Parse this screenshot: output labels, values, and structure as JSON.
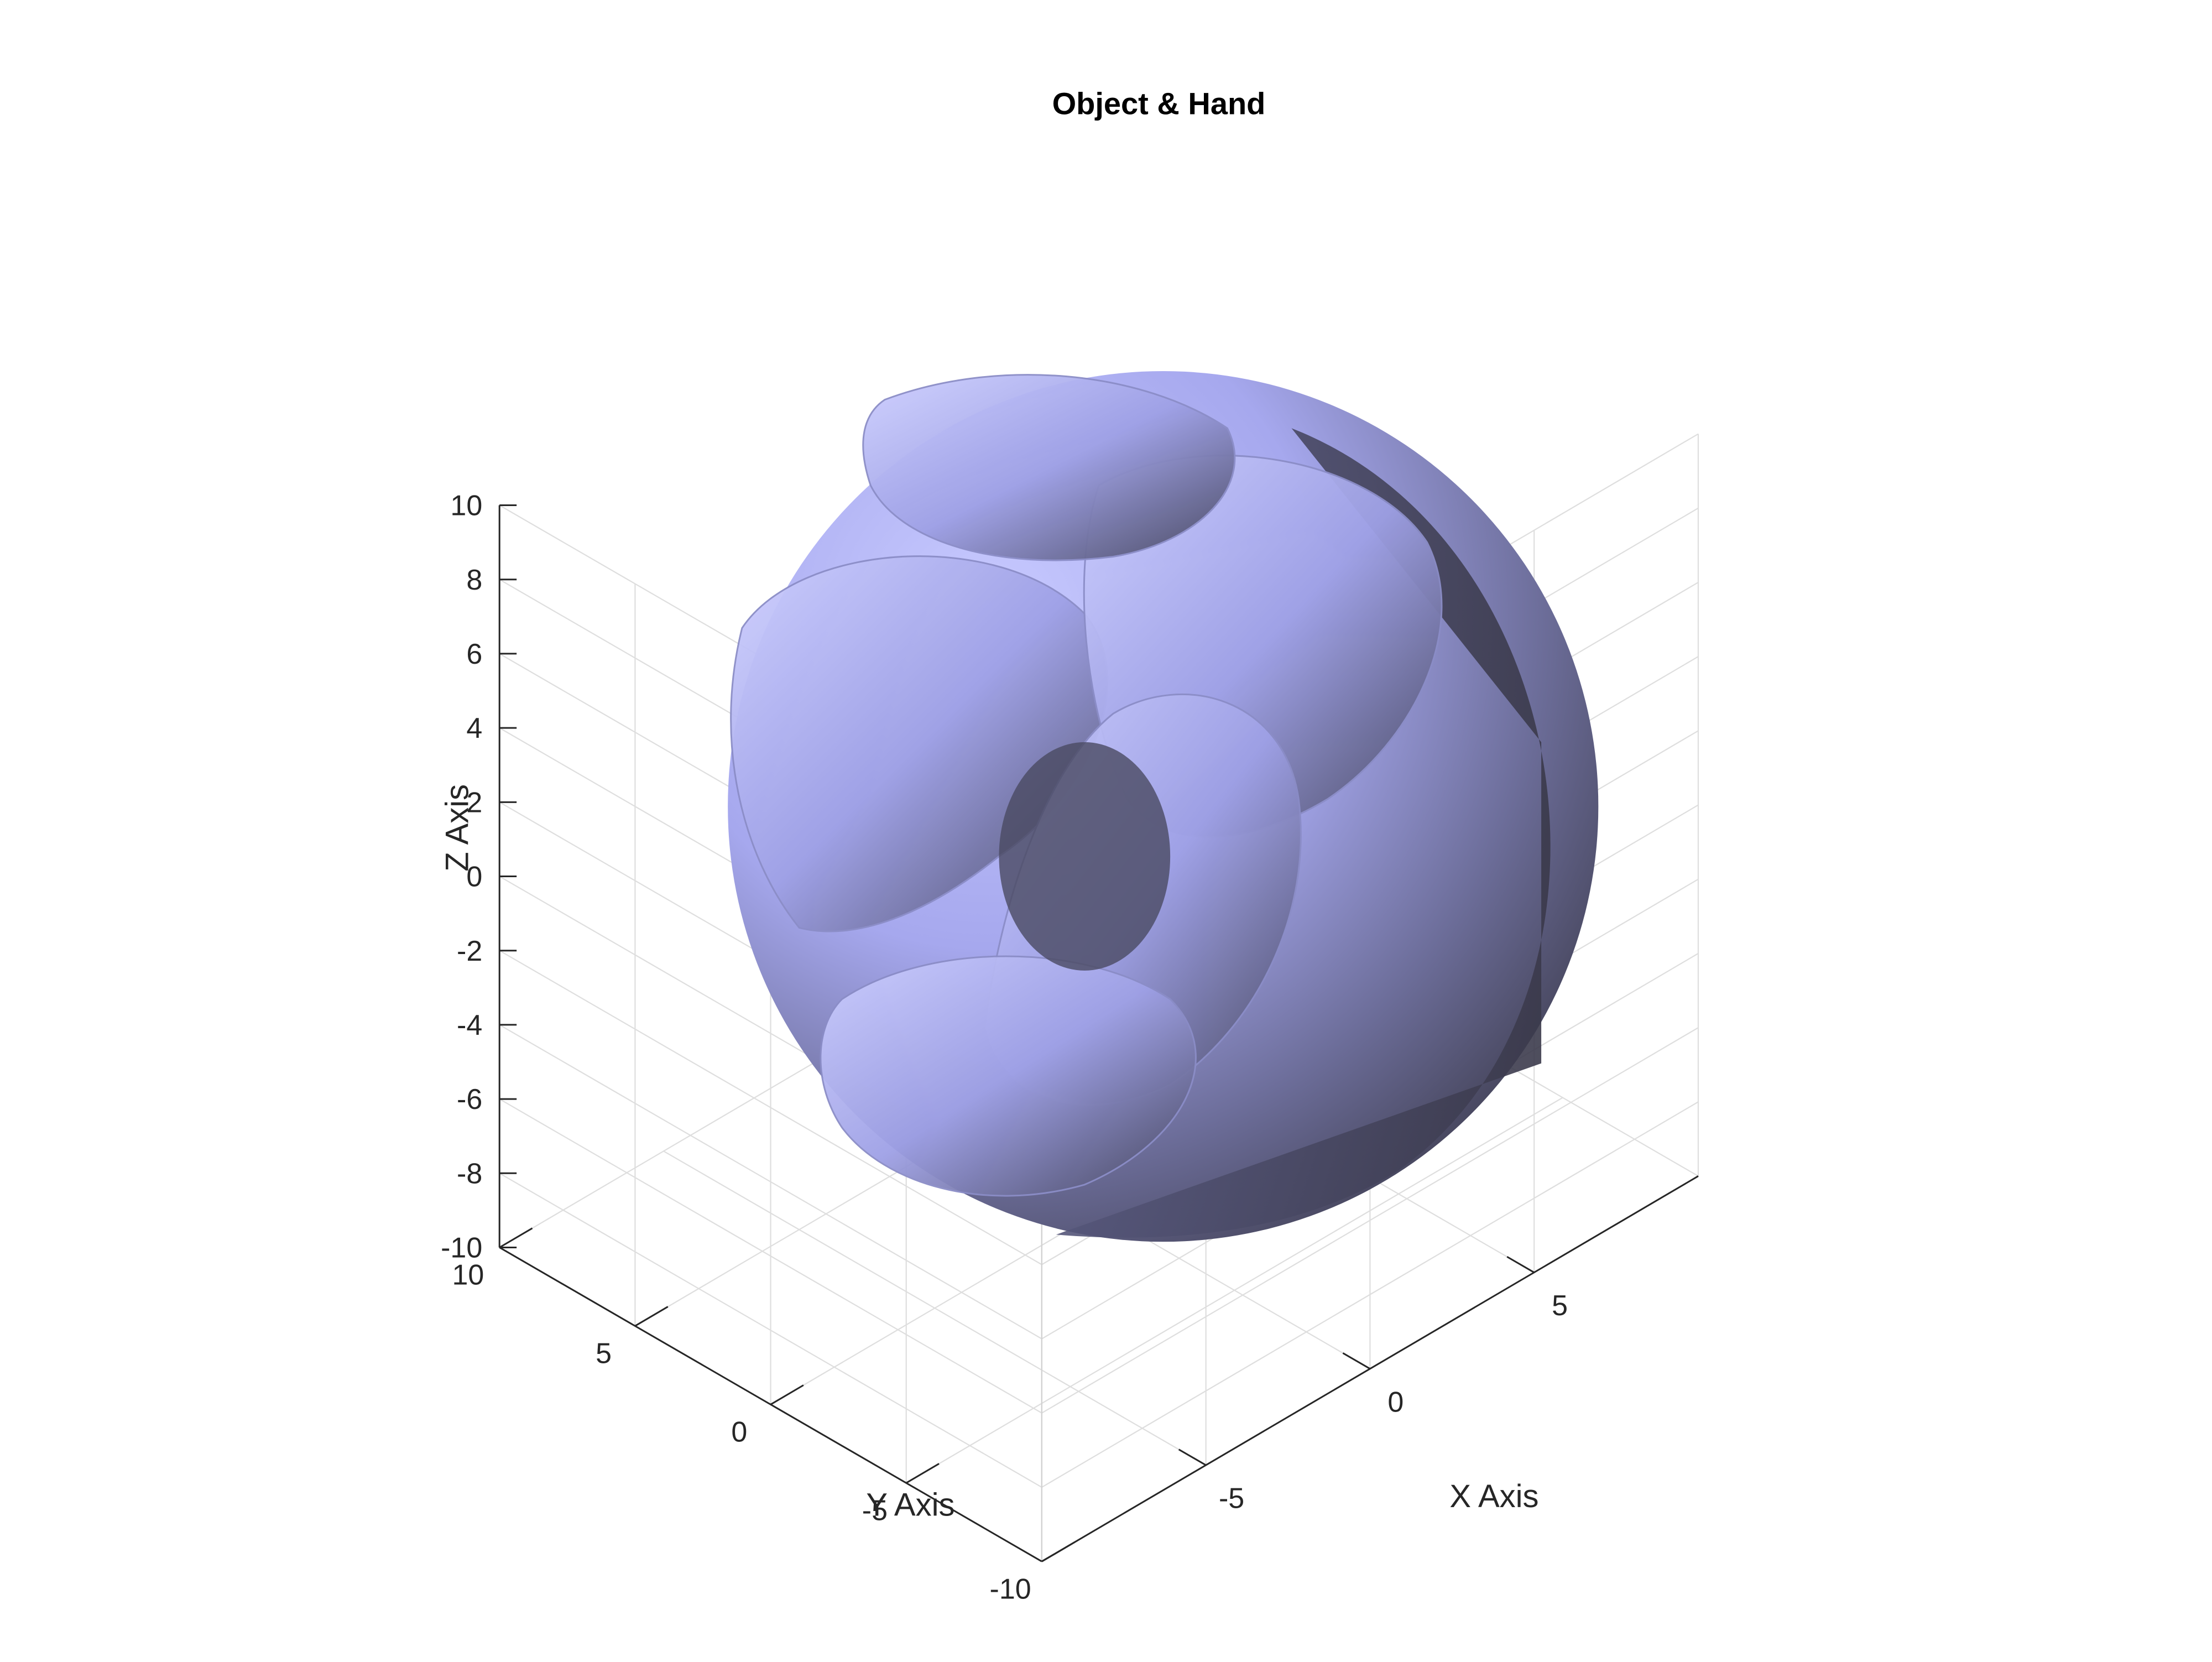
{
  "chart_data": {
    "type": "3d-surface",
    "title": "Object & Hand",
    "xlabel": "X Axis",
    "ylabel": "Y Axis",
    "zlabel": "Z Axis",
    "xlim": [
      -10,
      10
    ],
    "ylim": [
      -10,
      10
    ],
    "zlim": [
      -10,
      10
    ],
    "x_ticks": [
      -5,
      0,
      5
    ],
    "y_ticks": [
      -10,
      -5,
      0,
      5,
      10
    ],
    "z_ticks": [
      -10,
      -8,
      -6,
      -4,
      -2,
      0,
      2,
      4,
      6,
      8,
      10
    ],
    "grid": true,
    "view": "isometric",
    "surface_color": "#b4b6ff",
    "shadow_color": "#3e3d4f",
    "object": {
      "shape": "sphere",
      "center": [
        0,
        0,
        0
      ],
      "radius": 10
    },
    "hand": {
      "description_shape": "curled fingers wrapping the sphere"
    }
  }
}
